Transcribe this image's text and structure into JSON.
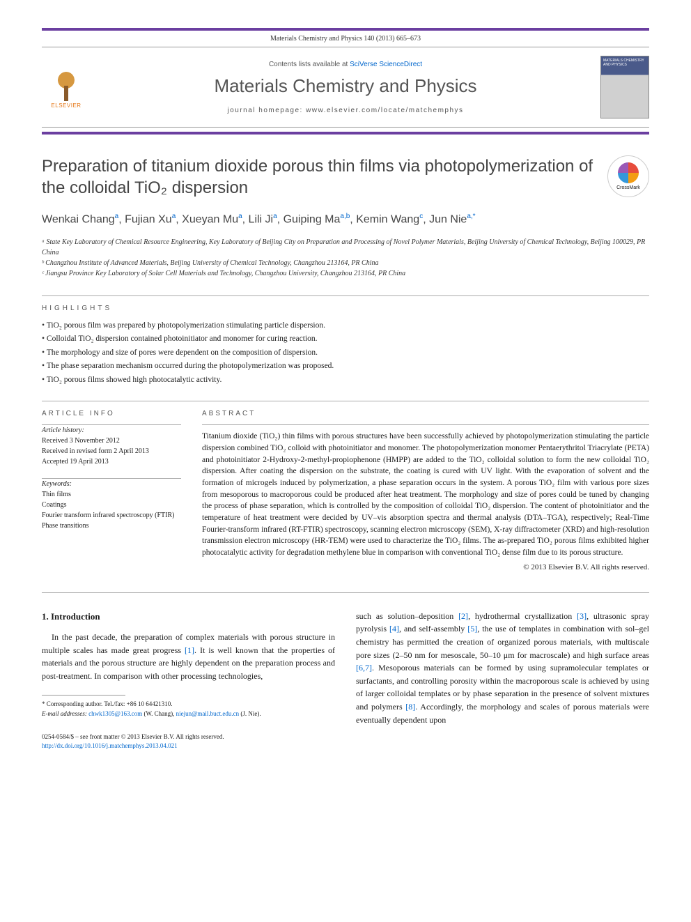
{
  "citation": "Materials Chemistry and Physics 140 (2013) 665–673",
  "header": {
    "publisher_name": "ELSEVIER",
    "contents_prefix": "Contents lists available at ",
    "contents_link": "SciVerse ScienceDirect",
    "journal_name": "Materials Chemistry and Physics",
    "homepage_prefix": "journal homepage: ",
    "homepage_url": "www.elsevier.com/locate/matchemphys",
    "cover_text": "MATERIALS CHEMISTRY AND PHYSICS"
  },
  "crossmark_label": "CrossMark",
  "title": "Preparation of titanium dioxide porous thin films via photopolymerization of the colloidal TiO₂ dispersion",
  "authors_html": "Wenkai Chang<sup>a</sup>, Fujian Xu<sup>a</sup>, Xueyan Mu<sup>a</sup>, Lili Ji<sup>a</sup>, Guiping Ma<sup>a,b</sup>, Kemin Wang<sup>c</sup>, Jun Nie<sup>a,*</sup>",
  "affiliations": [
    "ᵃ State Key Laboratory of Chemical Resource Engineering, Key Laboratory of Beijing City on Preparation and Processing of Novel Polymer Materials, Beijing University of Chemical Technology, Beijing 100029, PR China",
    "ᵇ Changzhou Institute of Advanced Materials, Beijing University of Chemical Technology, Changzhou 213164, PR China",
    "ᶜ Jiangsu Province Key Laboratory of Solar Cell Materials and Technology, Changzhou University, Changzhou 213164, PR China"
  ],
  "highlights_label": "HIGHLIGHTS",
  "highlights": [
    "TiO₂ porous film was prepared by photopolymerization stimulating particle dispersion.",
    "Colloidal TiO₂ dispersion contained photoinitiator and monomer for curing reaction.",
    "The morphology and size of pores were dependent on the composition of dispersion.",
    "The phase separation mechanism occurred during the photopolymerization was proposed.",
    "TiO₂ porous films showed high photocatalytic activity."
  ],
  "article_info_label": "ARTICLE INFO",
  "history": {
    "label": "Article history:",
    "received": "Received 3 November 2012",
    "revised": "Received in revised form 2 April 2013",
    "accepted": "Accepted 19 April 2013"
  },
  "keywords": {
    "label": "Keywords:",
    "items": [
      "Thin films",
      "Coatings",
      "Fourier transform infrared spectroscopy (FTIR)",
      "Phase transitions"
    ]
  },
  "abstract_label": "ABSTRACT",
  "abstract_text": "Titanium dioxide (TiO₂) thin films with porous structures have been successfully achieved by photopolymerization stimulating the particle dispersion combined TiO₂ colloid with photoinitiator and monomer. The photopolymerization monomer Pentaerythritol Triacrylate (PETA) and photoinitiator 2-Hydroxy-2-methyl-propiophenone (HMPP) are added to the TiO₂ colloidal solution to form the new colloidal TiO₂ dispersion. After coating the dispersion on the substrate, the coating is cured with UV light. With the evaporation of solvent and the formation of microgels induced by polymerization, a phase separation occurs in the system. A porous TiO₂ film with various pore sizes from mesoporous to macroporous could be produced after heat treatment. The morphology and size of pores could be tuned by changing the process of phase separation, which is controlled by the composition of colloidal TiO₂ dispersion. The content of photoinitiator and the temperature of heat treatment were decided by UV–vis absorption spectra and thermal analysis (DTA–TGA), respectively; Real-Time Fourier-transform infrared (RT-FTIR) spectroscopy, scanning electron microscopy (SEM), X-ray diffractometer (XRD) and high-resolution transmission electron microscopy (HR-TEM) were used to characterize the TiO₂ films. The as-prepared TiO₂ porous films exhibited higher photocatalytic activity for degradation methylene blue in comparison with conventional TiO₂ dense film due to its porous structure.",
  "abstract_copyright": "© 2013 Elsevier B.V. All rights reserved.",
  "intro_heading": "1. Introduction",
  "intro_col1": "In the past decade, the preparation of complex materials with porous structure in multiple scales has made great progress [1]. It is well known that the properties of materials and the porous structure are highly dependent on the preparation process and post-treatment. In comparison with other processing technologies,",
  "intro_col2": "such as solution–deposition [2], hydrothermal crystallization [3], ultrasonic spray pyrolysis [4], and self-assembly [5], the use of templates in combination with sol–gel chemistry has permitted the creation of organized porous materials, with multiscale pore sizes (2–50 nm for mesoscale, 50–10 μm for macroscale) and high surface areas [6,7]. Mesoporous materials can be formed by using supramolecular templates or surfactants, and controlling porosity within the macroporous scale is achieved by using of larger colloidal templates or by phase separation in the presence of solvent mixtures and polymers [8]. Accordingly, the morphology and scales of porous materials were eventually dependent upon",
  "footnote": {
    "corresponding": "* Corresponding author. Tel./fax: +86 10 64421310.",
    "email_label": "E-mail addresses:",
    "email1": "chwk1305@163.com",
    "email1_name": "(W. Chang),",
    "email2": "niejun@mail.buct.edu.cn",
    "email2_name": "(J. Nie)."
  },
  "footer": {
    "issn": "0254-0584/$ – see front matter © 2013 Elsevier B.V. All rights reserved.",
    "doi": "http://dx.doi.org/10.1016/j.matchemphys.2013.04.021"
  },
  "colors": {
    "bar": "#6b3fa0",
    "link": "#0066cc",
    "publisher": "#e67817"
  }
}
